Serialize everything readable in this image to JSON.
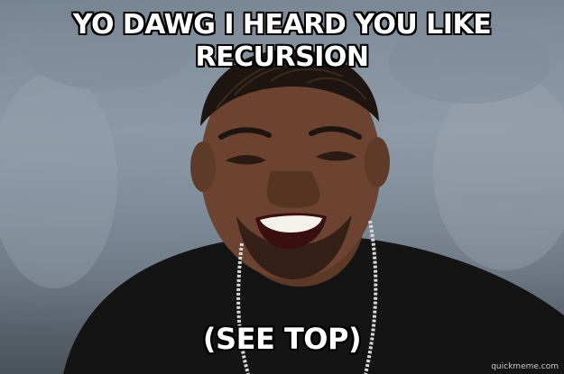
{
  "caption": {
    "top_lines": [
      "YO DAWG I HEARD YOU LIKE",
      "RECURSION"
    ],
    "bottom": "(SEE TOP)"
  },
  "watermark": "quickmeme.com",
  "colors": {
    "caption_fill": "#ffffff",
    "caption_outline": "#000000",
    "shirt": "#141414",
    "skin": "#6b4330"
  }
}
